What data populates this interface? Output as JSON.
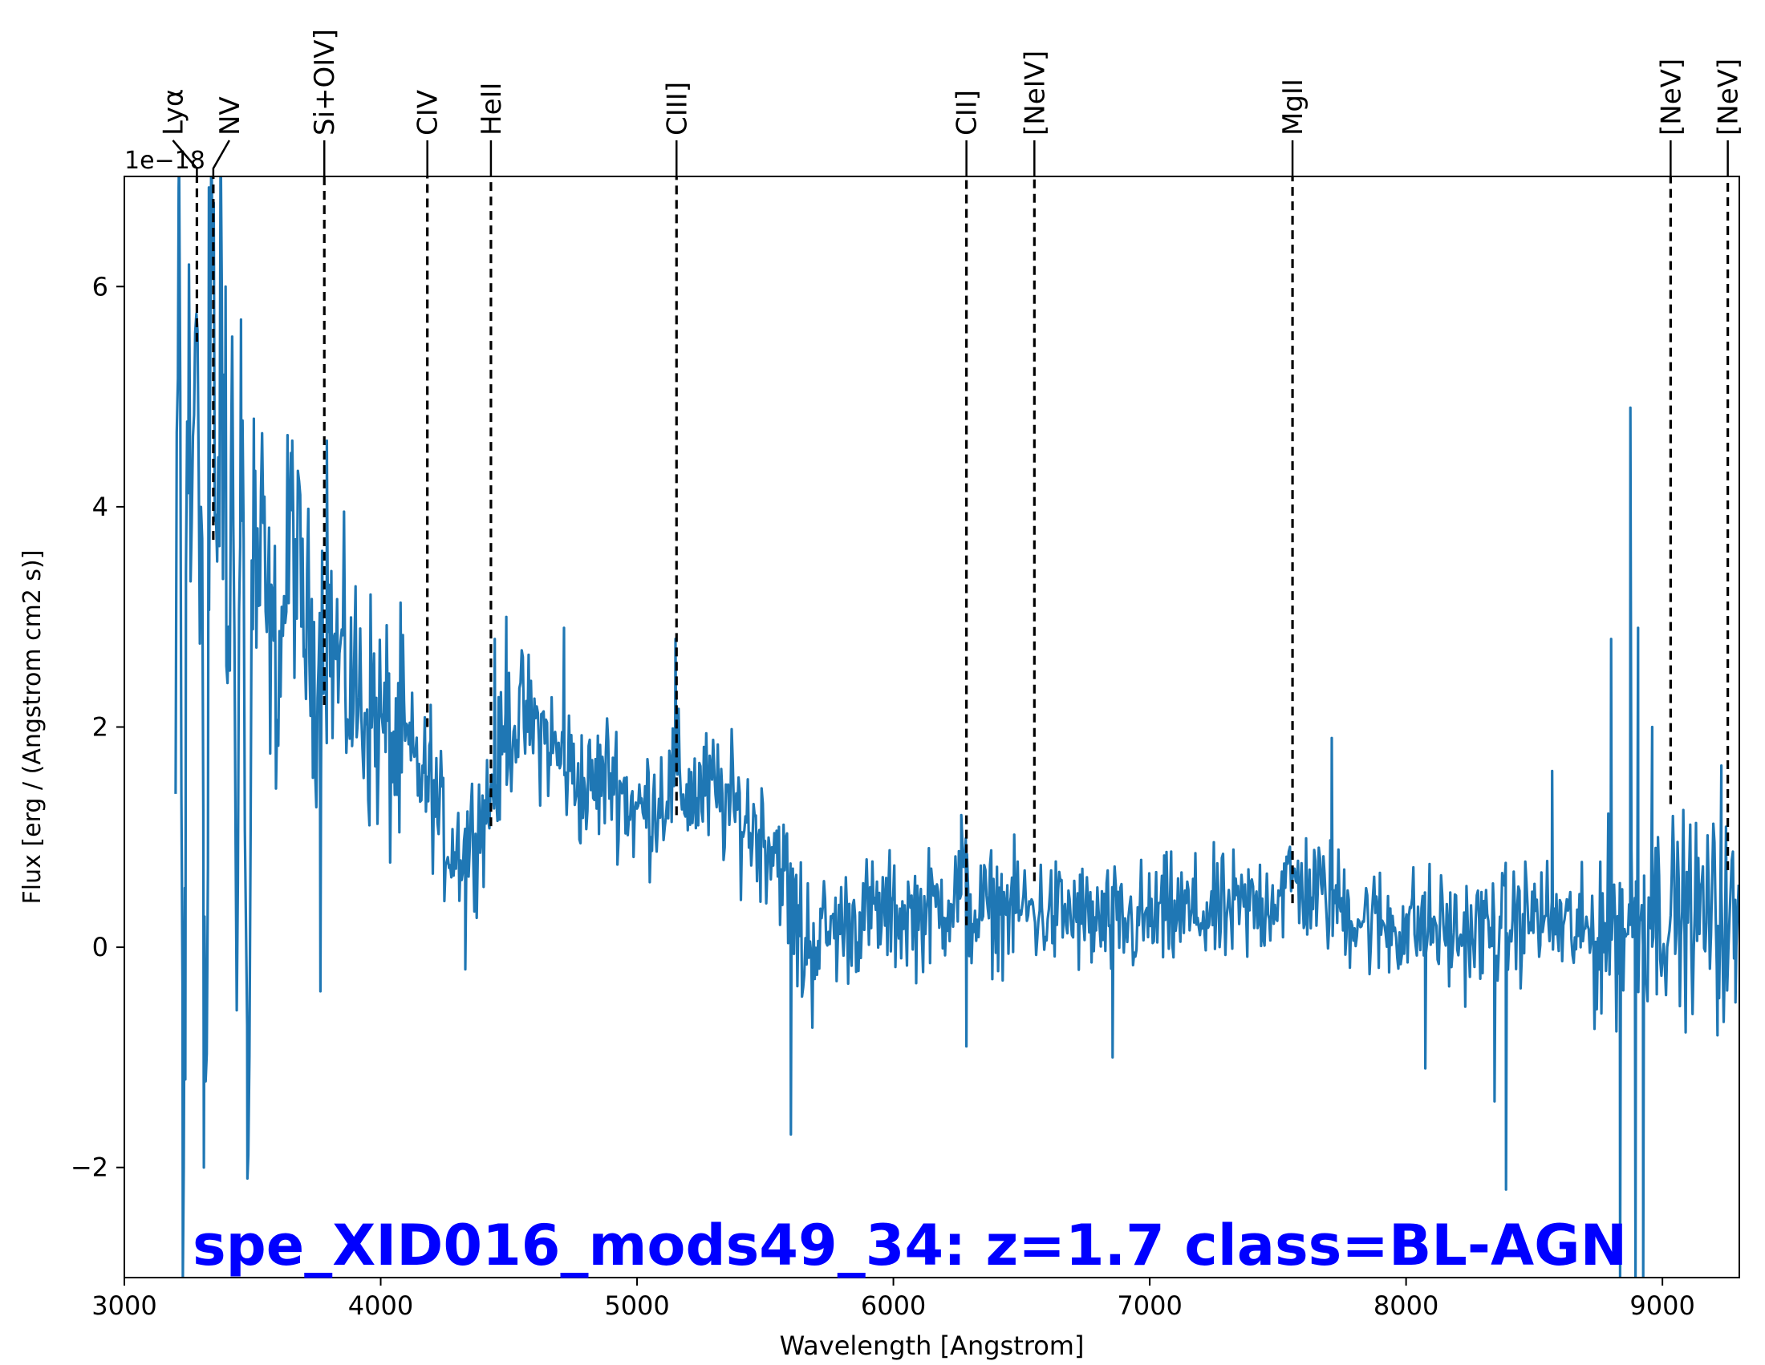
{
  "chart_data": {
    "type": "line",
    "title": "spe_XID016_mods49_34: z=1.7 class=BL-AGN",
    "title_color": "#0000ff",
    "xlabel": "Wavelength [Angstrom]",
    "ylabel": "Flux [erg / (Angstrom cm2 s)]",
    "y_offset_text": "1e−18",
    "xlim": [
      3000,
      9300
    ],
    "ylim": [
      -3.0,
      7.0
    ],
    "xticks": [
      3000,
      4000,
      5000,
      6000,
      7000,
      8000,
      9000
    ],
    "xtick_labels": [
      "3000",
      "4000",
      "5000",
      "6000",
      "7000",
      "8000",
      "9000"
    ],
    "yticks": [
      -2,
      0,
      2,
      4,
      6
    ],
    "ytick_labels": [
      "−2",
      "0",
      "2",
      "4",
      "6"
    ],
    "grid": false,
    "series_color": "#1f77b4",
    "spectrum_anchors": [
      [
        3200,
        1.2
      ],
      [
        3215,
        6.9
      ],
      [
        3230,
        -3.0
      ],
      [
        3245,
        5.5
      ],
      [
        3260,
        3.0
      ],
      [
        3280,
        6.5
      ],
      [
        3300,
        4.0
      ],
      [
        3320,
        -2.0
      ],
      [
        3340,
        6.9
      ],
      [
        3360,
        3.5
      ],
      [
        3380,
        5.5
      ],
      [
        3400,
        2.5
      ],
      [
        3420,
        4.5
      ],
      [
        3440,
        1.0
      ],
      [
        3460,
        5.0
      ],
      [
        3480,
        -2.0
      ],
      [
        3500,
        3.5
      ],
      [
        3550,
        3.0
      ],
      [
        3600,
        2.5
      ],
      [
        3650,
        3.8
      ],
      [
        3700,
        3.0
      ],
      [
        3750,
        2.5
      ],
      [
        3780,
        3.0
      ],
      [
        3800,
        2.8
      ],
      [
        3850,
        2.5
      ],
      [
        3900,
        2.3
      ],
      [
        3950,
        2.2
      ],
      [
        4000,
        2.0
      ],
      [
        4050,
        1.8
      ],
      [
        4100,
        1.8
      ],
      [
        4150,
        1.6
      ],
      [
        4200,
        1.4
      ],
      [
        4250,
        1.0
      ],
      [
        4300,
        0.9
      ],
      [
        4350,
        1.0
      ],
      [
        4400,
        1.2
      ],
      [
        4450,
        1.5
      ],
      [
        4500,
        2.0
      ],
      [
        4550,
        2.1
      ],
      [
        4600,
        2.0
      ],
      [
        4650,
        1.9
      ],
      [
        4700,
        1.7
      ],
      [
        4750,
        1.6
      ],
      [
        4800,
        1.4
      ],
      [
        4850,
        1.5
      ],
      [
        4900,
        1.6
      ],
      [
        4950,
        1.4
      ],
      [
        5000,
        1.2
      ],
      [
        5050,
        1.3
      ],
      [
        5100,
        1.4
      ],
      [
        5150,
        1.5
      ],
      [
        5200,
        1.4
      ],
      [
        5300,
        1.4
      ],
      [
        5400,
        1.2
      ],
      [
        5500,
        1.0
      ],
      [
        5550,
        0.9
      ],
      [
        5600,
        0.4
      ],
      [
        5650,
        0.0
      ],
      [
        5700,
        0.1
      ],
      [
        5800,
        0.2
      ],
      [
        5900,
        0.3
      ],
      [
        6000,
        0.3
      ],
      [
        6100,
        0.3
      ],
      [
        6200,
        0.4
      ],
      [
        6280,
        0.6
      ],
      [
        6300,
        0.3
      ],
      [
        6400,
        0.35
      ],
      [
        6500,
        0.35
      ],
      [
        6600,
        0.3
      ],
      [
        6700,
        0.3
      ],
      [
        6800,
        0.2
      ],
      [
        6900,
        0.2
      ],
      [
        7000,
        0.25
      ],
      [
        7100,
        0.3
      ],
      [
        7200,
        0.3
      ],
      [
        7300,
        0.3
      ],
      [
        7400,
        0.35
      ],
      [
        7500,
        0.5
      ],
      [
        7560,
        0.6
      ],
      [
        7600,
        0.55
      ],
      [
        7700,
        0.45
      ],
      [
        7800,
        0.3
      ],
      [
        7900,
        0.2
      ],
      [
        8000,
        0.2
      ],
      [
        8100,
        0.2
      ],
      [
        8200,
        0.1
      ],
      [
        8300,
        0.15
      ],
      [
        8400,
        0.2
      ],
      [
        8500,
        0.3
      ],
      [
        8600,
        0.2
      ],
      [
        8700,
        0.1
      ],
      [
        8800,
        0.2
      ],
      [
        8900,
        0.3
      ],
      [
        9000,
        0.35
      ],
      [
        9100,
        0.3
      ],
      [
        9200,
        0.3
      ],
      [
        9300,
        0.2
      ]
    ],
    "spikes": [
      [
        3212,
        6.9
      ],
      [
        3228,
        -3.0
      ],
      [
        3238,
        -1.2
      ],
      [
        3252,
        6.2
      ],
      [
        3310,
        -2.0
      ],
      [
        3330,
        6.9
      ],
      [
        3395,
        6.0
      ],
      [
        3455,
        5.7
      ],
      [
        3480,
        -2.1
      ],
      [
        3505,
        4.8
      ],
      [
        3655,
        4.6
      ],
      [
        3765,
        -0.4
      ],
      [
        3790,
        4.6
      ],
      [
        4195,
        2.2
      ],
      [
        4330,
        -0.2
      ],
      [
        4445,
        2.8
      ],
      [
        4490,
        3.0
      ],
      [
        4715,
        2.9
      ],
      [
        5150,
        2.8
      ],
      [
        5600,
        -1.7
      ],
      [
        6265,
        1.2
      ],
      [
        6285,
        -0.9
      ],
      [
        6855,
        -1.0
      ],
      [
        7710,
        1.9
      ],
      [
        8075,
        -1.1
      ],
      [
        8345,
        -1.4
      ],
      [
        8390,
        -2.2
      ],
      [
        8570,
        1.6
      ],
      [
        8800,
        2.8
      ],
      [
        8835,
        -3.0
      ],
      [
        8875,
        4.9
      ],
      [
        8895,
        -3.0
      ],
      [
        8905,
        2.9
      ],
      [
        8925,
        -3.0
      ],
      [
        8960,
        2.0
      ],
      [
        9215,
        -0.8
      ],
      [
        9230,
        1.65
      ],
      [
        9285,
        -0.5
      ]
    ],
    "lines": [
      {
        "name": "Lyα",
        "wavelength": 3283,
        "ymin": 5.5
      },
      {
        "name": "NV",
        "wavelength": 3347,
        "ymin": 3.7
      },
      {
        "name": "Si+OIV]",
        "wavelength": 3780,
        "ymin": 2.2
      },
      {
        "name": "CIV",
        "wavelength": 4182,
        "ymin": 2.0
      },
      {
        "name": "HeII",
        "wavelength": 4430,
        "ymin": 1.1
      },
      {
        "name": "CIII]",
        "wavelength": 5154,
        "ymin": 1.2
      },
      {
        "name": "CII]",
        "wavelength": 6285,
        "ymin": 0.2
      },
      {
        "name": "[NeIV]",
        "wavelength": 6550,
        "ymin": 0.6
      },
      {
        "name": "MgII",
        "wavelength": 7557,
        "ymin": 0.4
      },
      {
        "name": "[NeV]",
        "wavelength": 9032,
        "ymin": 1.3
      },
      {
        "name": "[NeV]",
        "wavelength": 9255,
        "ymin": 0.7
      }
    ]
  }
}
